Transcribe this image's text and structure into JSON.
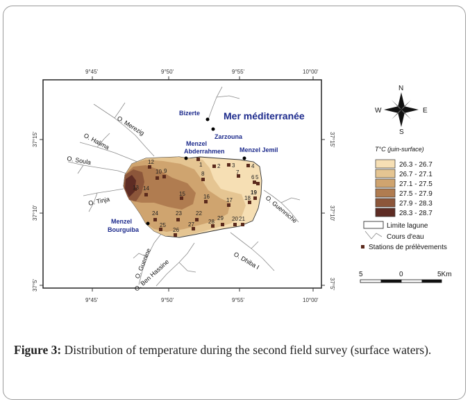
{
  "map": {
    "sea_label": "Mer méditerranée",
    "places": {
      "bizerte": "Bizerte",
      "zarzouna": "Zarzouna",
      "menzel_abderrahmen_1": "Menzel",
      "menzel_abderrahmen_2": "Abderrahmen",
      "menzel_jemil": "Menzel Jemil",
      "menzel_bourguiba_1": "Menzel",
      "menzel_bourguiba_2": "Bourguiba"
    },
    "rivers": {
      "merezig": "O. Merezig",
      "halima": "O. Halima",
      "soula": "O. Soula",
      "tinja": "O. Tinja",
      "guenine": "O. Guenine",
      "ben_hassine": "O. Ben Hassine",
      "dhiba": "O. Dhiba I",
      "guenniche": "O. Guenniche"
    },
    "top_ticks": [
      "9°45'",
      "9°50'",
      "9°55'",
      "10°00'"
    ],
    "bottom_ticks": [
      "9°45'",
      "9°50'",
      "9°55'",
      "10°00'"
    ],
    "left_ticks": [
      "37°15'",
      "37°10'",
      "37°5'"
    ],
    "right_ticks": [
      "37°15'",
      "37°10'",
      "37°5'"
    ],
    "stations": [
      {
        "n": "1"
      },
      {
        "n": "2"
      },
      {
        "n": "3"
      },
      {
        "n": "4"
      },
      {
        "n": "5"
      },
      {
        "n": "6"
      },
      {
        "n": "7"
      },
      {
        "n": "8"
      },
      {
        "n": "9"
      },
      {
        "n": "10"
      },
      {
        "n": "12"
      },
      {
        "n": "13"
      },
      {
        "n": "14"
      },
      {
        "n": "15"
      },
      {
        "n": "16"
      },
      {
        "n": "17"
      },
      {
        "n": "18"
      },
      {
        "n": "19"
      },
      {
        "n": "20"
      },
      {
        "n": "21"
      },
      {
        "n": "22"
      },
      {
        "n": "23"
      },
      {
        "n": "24"
      },
      {
        "n": "25"
      },
      {
        "n": "26"
      },
      {
        "n": "27"
      },
      {
        "n": "28"
      },
      {
        "n": "29"
      }
    ]
  },
  "compass": {
    "n": "N",
    "s": "S",
    "e": "E",
    "w": "W"
  },
  "legend": {
    "title": "T°C (juin-surface)",
    "classes": [
      {
        "label": "26.3 - 26.7",
        "color": "#f6dfb4"
      },
      {
        "label": "26.7 - 27.1",
        "color": "#e5c592"
      },
      {
        "label": "27.1 - 27.5",
        "color": "#cfa46f"
      },
      {
        "label": "27.5 - 27.9",
        "color": "#b07c50"
      },
      {
        "label": "27.9 - 28.3",
        "color": "#8c563a"
      },
      {
        "label": "28.3 - 28.7",
        "color": "#5e2c24"
      }
    ],
    "lagoon_limit": "Limite lagune",
    "streams": "Cours d'eau",
    "stations": "Stations de prélèvements"
  },
  "scalebar": {
    "left": "5",
    "middle": "0",
    "right": "5Km"
  },
  "caption": {
    "label": "Figure 3:",
    "text": " Distribution of temperature during the second field survey (surface waters)."
  }
}
